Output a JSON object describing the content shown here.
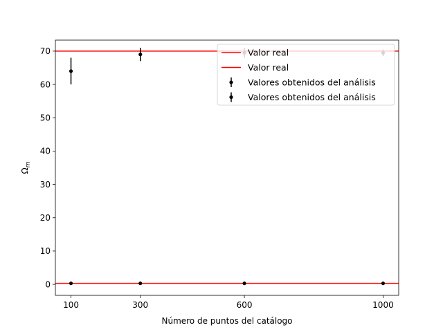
{
  "chart_data": {
    "type": "scatter",
    "title": "",
    "xlabel": "Número de puntos del catálogo",
    "ylabel_base": "Ω",
    "ylabel_sub": "m",
    "xlim": [
      55,
      1045
    ],
    "ylim": [
      -3.3,
      73.3
    ],
    "xticks": [
      100,
      300,
      600,
      1000
    ],
    "yticks": [
      0,
      10,
      20,
      30,
      40,
      50,
      60,
      70
    ],
    "grid": false,
    "legend_position": "top-right",
    "reference_lines": [
      {
        "name": "Valor real",
        "y": 70.0,
        "color": "#ff0000"
      },
      {
        "name": "Valor real",
        "y": 0.3,
        "color": "#ff0000"
      }
    ],
    "series": [
      {
        "name": "Valores obtenidos del análisis",
        "color": "#000000",
        "x": [
          100,
          300,
          600,
          1000
        ],
        "y": [
          64.0,
          69.0,
          69.5,
          69.5
        ],
        "yerr": [
          4.0,
          2.0,
          1.5,
          1.0
        ]
      },
      {
        "name": "Valores obtenidos del análisis",
        "color": "#000000",
        "x": [
          100,
          300,
          600,
          1000
        ],
        "y": [
          0.3,
          0.3,
          0.3,
          0.3
        ],
        "yerr": [
          0.05,
          0.03,
          0.02,
          0.02
        ]
      }
    ],
    "legend_overlay_color": "#d3d3d3"
  }
}
